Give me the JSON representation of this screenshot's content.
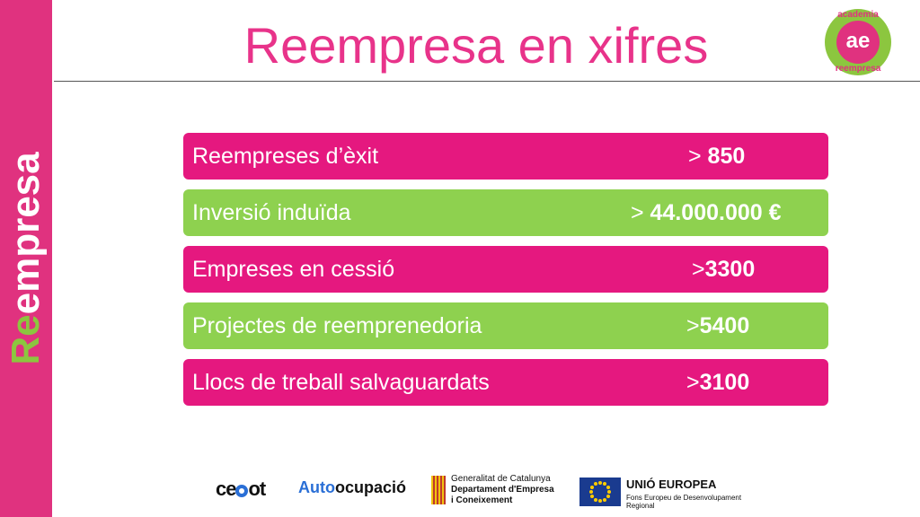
{
  "sidebar": {
    "word_first": "Re",
    "word_rest": "empresa"
  },
  "header": {
    "title": "Reempresa en xifres"
  },
  "logo": {
    "center": "ae",
    "top": "academia",
    "bottom": "reempresa"
  },
  "rows": [
    {
      "label": "Reempreses d’èxit",
      "prefix": "> ",
      "value": "850",
      "color": "#e5187f"
    },
    {
      "label": "Inversió induïda",
      "prefix": "> ",
      "value": "44.000.000 €",
      "color": "#8ed14f"
    },
    {
      "label": "Empreses en cessió",
      "prefix": ">",
      "value": "3300",
      "color": "#e5187f"
    },
    {
      "label": "Projectes de reemprenedoria",
      "prefix": ">",
      "value": "5400",
      "color": "#8ed14f"
    },
    {
      "label": "Llocs de treball salvaguardats",
      "prefix": ">",
      "value": "3100",
      "color": "#e5187f"
    }
  ],
  "footer": {
    "cecot_a": "ce",
    "cecot_b": "ot",
    "auto_a": "Auto",
    "auto_b": "ocupació",
    "gen_line1": "Generalitat de Catalunya",
    "gen_line2": "Departament d'Empresa",
    "gen_line3": "i Coneixement",
    "eu_title": "UNIÓ EUROPEA",
    "eu_sub": "Fons Europeu de Desenvolupament Regional"
  },
  "colors": {
    "accent_pink": "#e5187f",
    "accent_green": "#8ed14f",
    "title": "#e8338a"
  }
}
